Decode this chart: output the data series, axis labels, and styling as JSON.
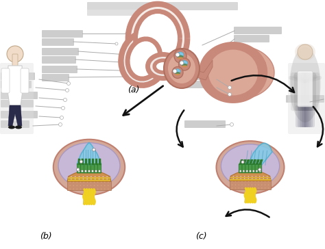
{
  "bg_color": "#ffffff",
  "sublabel_a": "(a)",
  "sublabel_b": "(b)",
  "sublabel_c": "(c)",
  "ear_color": "#c8887a",
  "ear_dark": "#b07060",
  "ear_light": "#dba898",
  "cochlea_color": "#c8887a",
  "cupula_color_b": "#7ecce8",
  "cupula_color_c": "#a0d8f0",
  "tissue_color": "#c8b8d8",
  "tissue_dark": "#a898c0",
  "hair_color": "#4a9a4a",
  "hair_dark": "#2a7a2a",
  "nerve_color": "#f0d020",
  "bone_color": "#d09050",
  "bone_dark": "#b07030",
  "skin_color": "#d4a898",
  "skin_dark": "#c08070",
  "gray_box": "#c8c8c8",
  "gray_line": "#aaaaaa",
  "arrow_color": "#111111"
}
